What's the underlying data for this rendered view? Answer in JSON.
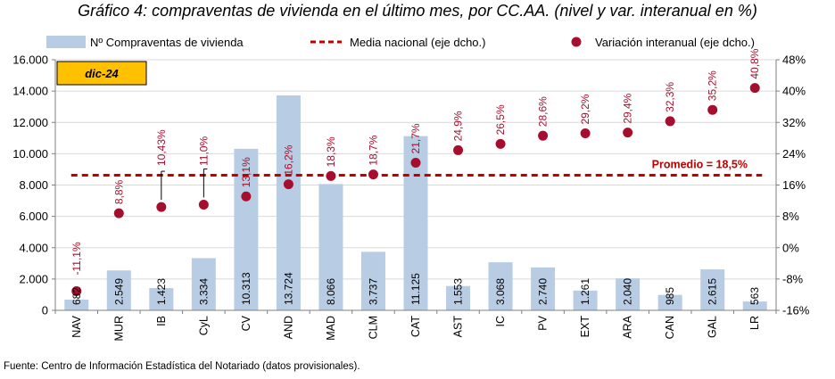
{
  "chart_data": {
    "type": "bar",
    "title": "Gráfico 4: compraventas de vivienda en el último mes, por CC.AA. (nivel y var. interanual en %)",
    "period_label": "dic-24",
    "categories": [
      "NAV",
      "MUR",
      "IB",
      "CyL",
      "CV",
      "AND",
      "MAD",
      "CLM",
      "CAT",
      "AST",
      "IC",
      "PV",
      "EXT",
      "ARA",
      "CAN",
      "GAL",
      "LR"
    ],
    "series": [
      {
        "name": "Nº Compraventas de vivienda",
        "axis": "left",
        "kind": "bar",
        "values": [
          682,
          2549,
          1423,
          3334,
          10313,
          13724,
          8066,
          3737,
          11125,
          1553,
          3068,
          2740,
          1261,
          2040,
          985,
          2615,
          563
        ],
        "labels": [
          "682",
          "2.549",
          "1.423",
          "3.334",
          "10.313",
          "13.724",
          "8.066",
          "3.737",
          "11.125",
          "1.553",
          "3.068",
          "2.740",
          "1.261",
          "2.040",
          "985",
          "2.615",
          "563"
        ]
      },
      {
        "name": "Media nacional (eje dcho.)",
        "axis": "right",
        "kind": "dashed-line",
        "value": 18.5
      },
      {
        "name": "Variación interanual (eje dcho.)",
        "axis": "right",
        "kind": "scatter",
        "values": [
          -11.1,
          8.8,
          10.4,
          11.0,
          13.1,
          16.2,
          18.3,
          18.7,
          21.7,
          24.9,
          26.5,
          28.6,
          29.2,
          29.4,
          32.3,
          35.2,
          40.8
        ],
        "labels": [
          "-11,1%",
          "8,8%",
          "10,43%",
          "11,0%",
          "13,1%",
          "16,2%",
          "18,3%",
          "18,7%",
          "21,7%",
          "24,9%",
          "26,5%",
          "28,6%",
          "29,2%",
          "29,4%",
          "32,3%",
          "35,2%",
          "40,8%"
        ]
      }
    ],
    "average_annotation": "Promedio = 18,5%",
    "left_axis": {
      "ylim": [
        0,
        16000
      ],
      "ticks": [
        0,
        2000,
        4000,
        6000,
        8000,
        10000,
        12000,
        14000,
        16000
      ],
      "tick_labels": [
        "0",
        "2.000",
        "4.000",
        "6.000",
        "8.000",
        "10.000",
        "12.000",
        "14.000",
        "16.000"
      ]
    },
    "right_axis": {
      "ylim": [
        -16,
        48
      ],
      "ticks": [
        -16,
        -8,
        0,
        8,
        16,
        24,
        32,
        40,
        48
      ],
      "tick_labels": [
        "-16%",
        "-8%",
        "0%",
        "8%",
        "16%",
        "24%",
        "32%",
        "40%",
        "48%"
      ]
    },
    "grid": true,
    "legend_position": "top",
    "colors": {
      "bar": "#b8cce4",
      "marker": "#a50f2d",
      "average_line": "#c00000",
      "period_box": "#ffc000",
      "label_text": "#a50f2d"
    }
  },
  "source_note": "Fuente: Centro de Información Estadística del Notariado (datos provisionales)."
}
